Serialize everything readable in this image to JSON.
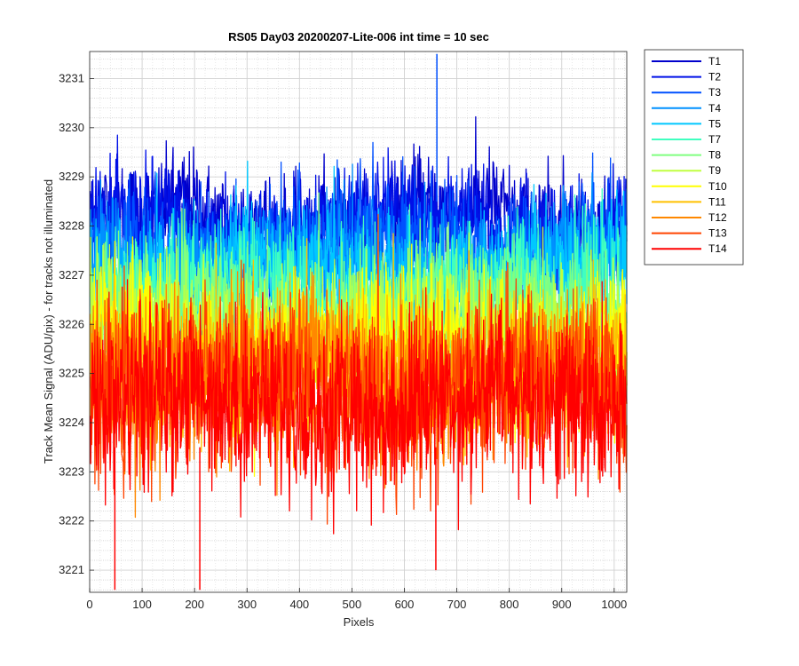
{
  "chart_data": {
    "type": "line",
    "title": "RS05 Day03 20200207-Lite-006 int time = 10 sec",
    "xlabel": "Pixels",
    "ylabel": "Track Mean Signal (ADU/pix) - for tracks not illuminated",
    "xlim": [
      0,
      1024
    ],
    "ylim": [
      3220.55,
      3231.55
    ],
    "xticks": [
      0,
      100,
      200,
      300,
      400,
      500,
      600,
      700,
      800,
      900,
      1000
    ],
    "yticks": [
      3221,
      3222,
      3223,
      3224,
      3225,
      3226,
      3227,
      3228,
      3229,
      3230,
      3231
    ],
    "grid": true,
    "minor_grid": true,
    "legend_position": "outside-top-right",
    "x": "1..1024 (pixel index)",
    "series": [
      {
        "name": "T1",
        "color": "#0000cc",
        "mean": 3228.1,
        "sd": 0.55
      },
      {
        "name": "T2",
        "color": "#0010e8",
        "mean": 3228.0,
        "sd": 0.55
      },
      {
        "name": "T3",
        "color": "#0050ff",
        "mean": 3227.6,
        "sd": 0.6
      },
      {
        "name": "T4",
        "color": "#0090ff",
        "mean": 3227.3,
        "sd": 0.6
      },
      {
        "name": "T5",
        "color": "#00c8ff",
        "mean": 3227.0,
        "sd": 0.6
      },
      {
        "name": "T7",
        "color": "#40ffc0",
        "mean": 3226.6,
        "sd": 0.65
      },
      {
        "name": "T8",
        "color": "#80ff80",
        "mean": 3226.2,
        "sd": 0.65
      },
      {
        "name": "T9",
        "color": "#c0ff40",
        "mean": 3225.9,
        "sd": 0.7
      },
      {
        "name": "T10",
        "color": "#ffff00",
        "mean": 3225.6,
        "sd": 0.7
      },
      {
        "name": "T11",
        "color": "#ffc000",
        "mean": 3225.2,
        "sd": 0.75
      },
      {
        "name": "T12",
        "color": "#ff8800",
        "mean": 3224.9,
        "sd": 0.8
      },
      {
        "name": "T13",
        "color": "#ff4400",
        "mean": 3224.7,
        "sd": 0.85
      },
      {
        "name": "T14",
        "color": "#ff0000",
        "mean": 3224.4,
        "sd": 0.9
      }
    ],
    "extremes": {
      "max_point": {
        "x": 662,
        "y": 3231.5
      },
      "min_points": [
        {
          "x": 48,
          "y": 3220.6
        },
        {
          "x": 210,
          "y": 3220.6
        },
        {
          "x": 660,
          "y": 3221.0
        }
      ]
    }
  }
}
